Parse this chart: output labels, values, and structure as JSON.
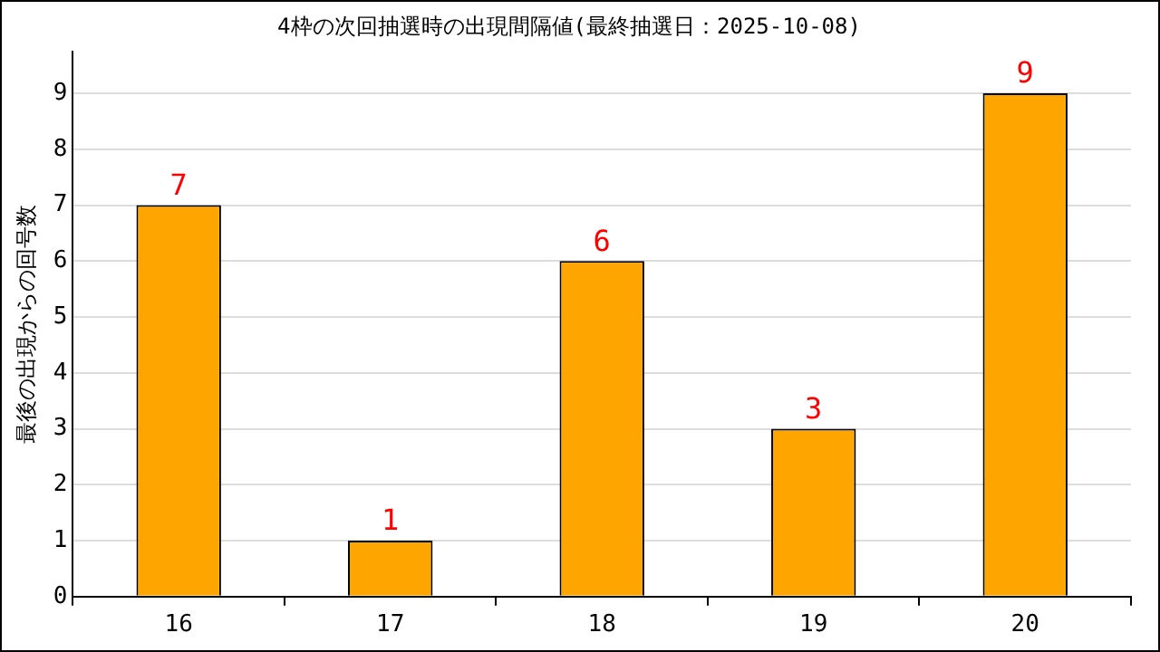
{
  "chart_data": {
    "type": "bar",
    "title": "4枠の次回抽選時の出現間隔値(最終抽選日：2025-10-08)",
    "ylabel": "最後の出現からの回号数",
    "categories": [
      "16",
      "17",
      "18",
      "19",
      "20"
    ],
    "series": [
      {
        "color": "#ffa500",
        "values": [
          7,
          1,
          6,
          3,
          9
        ]
      }
    ],
    "ylim": [
      0,
      9.75
    ],
    "yticks": [
      0,
      1,
      2,
      3,
      4,
      5,
      6,
      7,
      8,
      9
    ],
    "grid": "y",
    "data_labels": true,
    "legend": false
  }
}
